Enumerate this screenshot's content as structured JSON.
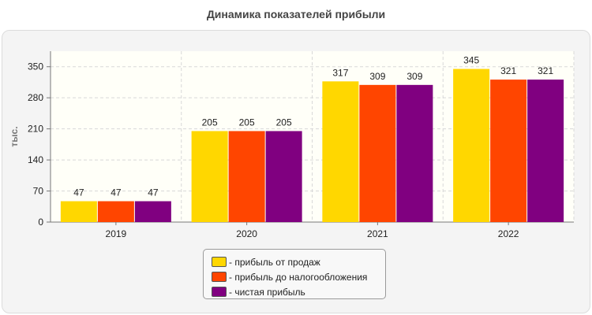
{
  "chart_data": {
    "type": "bar",
    "title": "Динамика показателей прибыли",
    "ylabel": "тыс.",
    "xlabel": "",
    "categories": [
      "2019",
      "2020",
      "2021",
      "2022"
    ],
    "series": [
      {
        "name": "- прибыль от продаж",
        "color": "#FFD700",
        "values": [
          47,
          205,
          317,
          345
        ]
      },
      {
        "name": "- прибыль до налогообложения",
        "color": "#FF4500",
        "values": [
          47,
          205,
          309,
          321
        ]
      },
      {
        "name": "- чистая прибыль",
        "color": "#800080",
        "values": [
          47,
          205,
          309,
          321
        ]
      }
    ],
    "ylim": [
      0,
      385
    ],
    "yticks": [
      0,
      70,
      140,
      210,
      280,
      350
    ],
    "grid": true,
    "legend_position": "bottom"
  }
}
